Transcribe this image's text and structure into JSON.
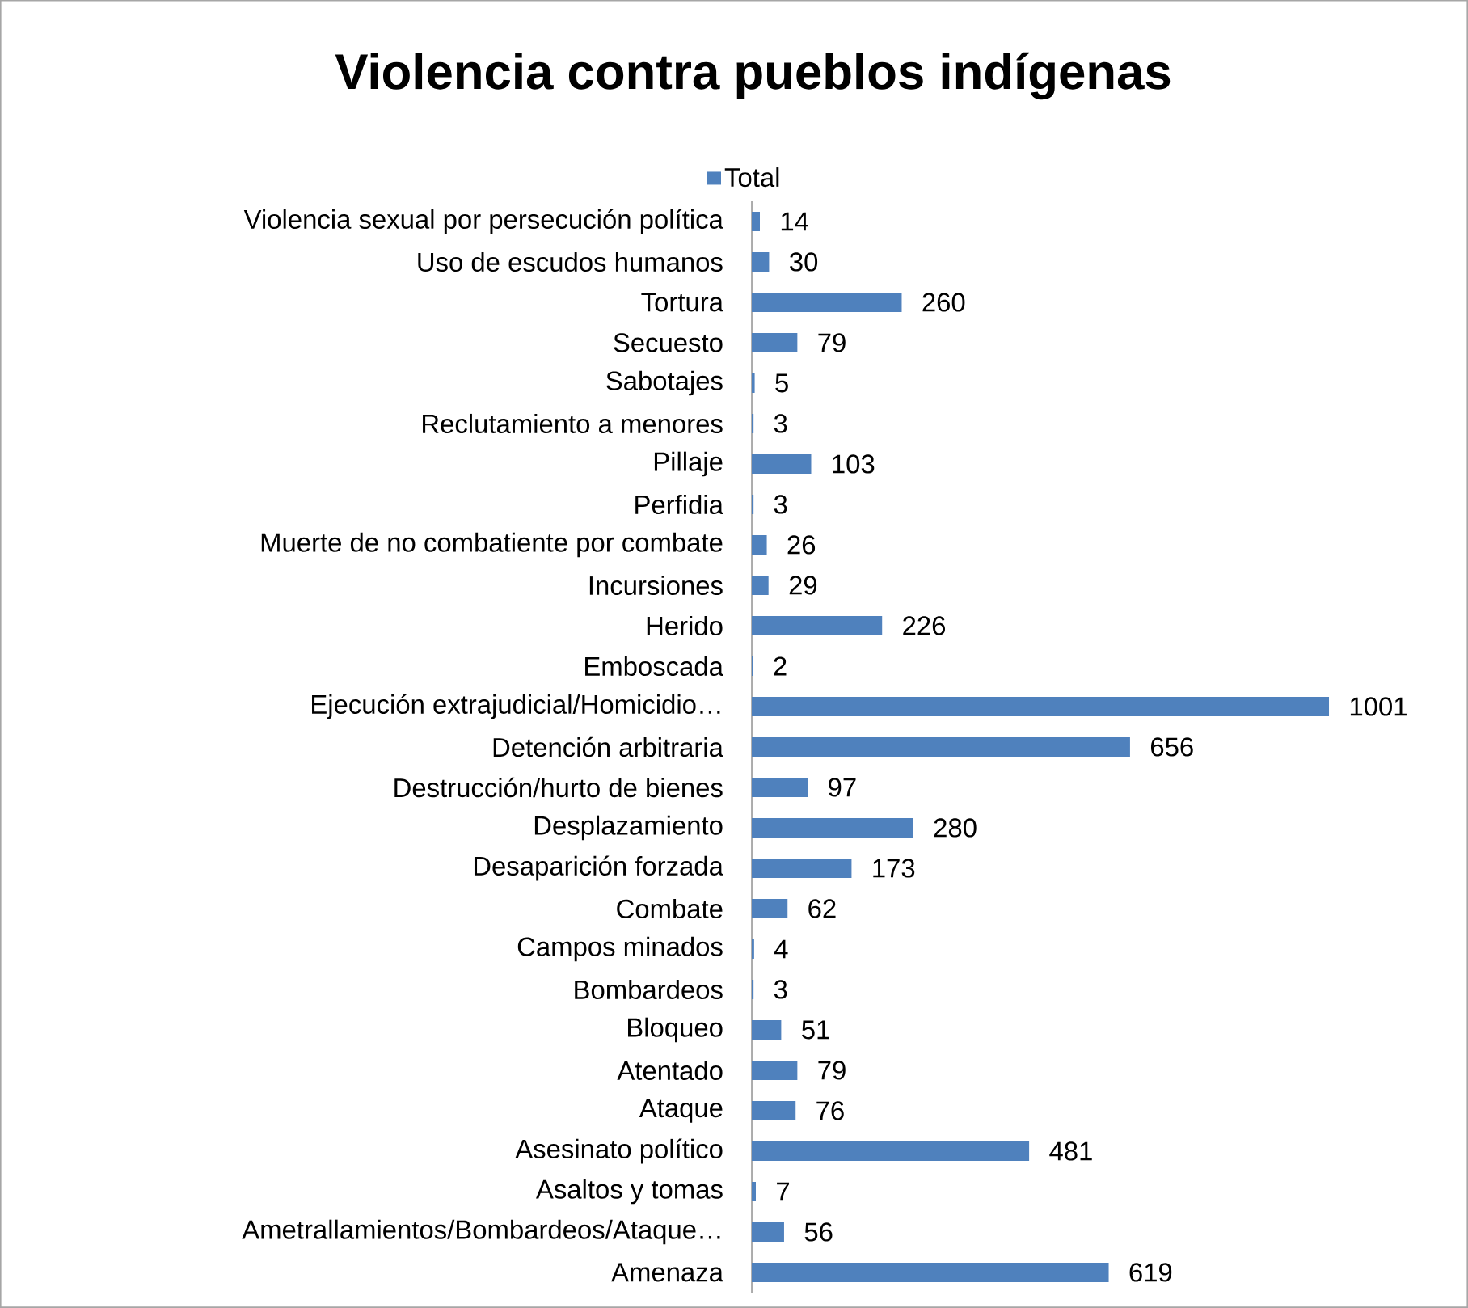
{
  "chart_data": {
    "type": "bar",
    "orientation": "horizontal",
    "title": "Violencia contra pueblos indígenas",
    "categories": [
      "Violencia sexual por persecución política",
      "Uso de escudos humanos",
      "Tortura",
      "Secuesto",
      "Sabotajes",
      "Reclutamiento a menores",
      "Pillaje",
      "Perfidia",
      "Muerte de no combatiente por combate",
      "Incursiones",
      "Herido",
      "Emboscada",
      "Ejecución extrajudicial/Homicidio…",
      "Detención arbitraria",
      "Destrucción/hurto de bienes",
      "Desplazamiento",
      "Desaparición forzada",
      "Combate",
      "Campos minados",
      "Bombardeos",
      "Bloqueo",
      "Atentado",
      "Ataque",
      "Asesinato político",
      "Asaltos y tomas",
      "Ametrallamientos/Bombardeos/Ataque…",
      "Amenaza"
    ],
    "series": [
      {
        "name": "Total",
        "color": "#4f81bd",
        "values": [
          14,
          30,
          260,
          79,
          5,
          3,
          103,
          3,
          26,
          29,
          226,
          2,
          1001,
          656,
          97,
          280,
          173,
          62,
          4,
          3,
          51,
          79,
          76,
          481,
          7,
          56,
          619
        ]
      }
    ],
    "data_labels": true,
    "legend": "top"
  }
}
